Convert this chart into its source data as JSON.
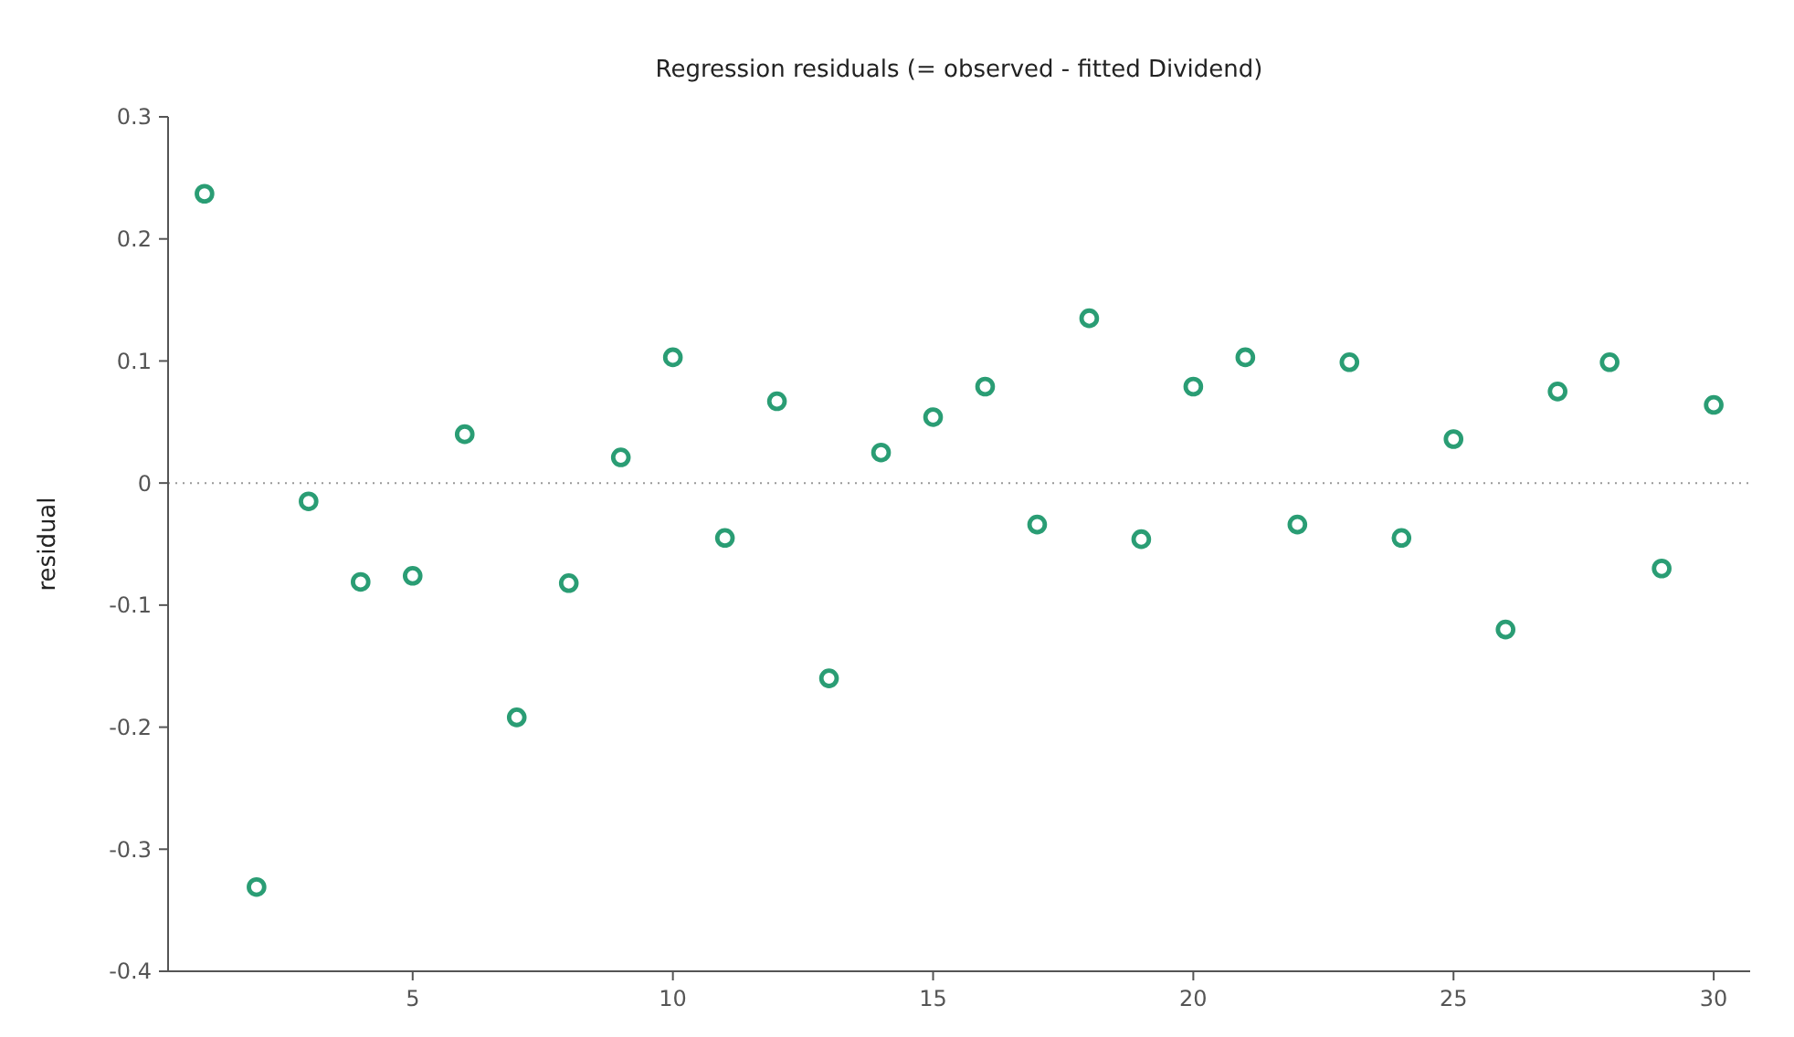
{
  "chart_data": {
    "type": "scatter",
    "title": "Regression residuals (= observed - fitted Dividend)",
    "ylabel": "residual",
    "x": [
      1,
      2,
      3,
      4,
      5,
      6,
      7,
      8,
      9,
      10,
      11,
      12,
      13,
      14,
      15,
      16,
      17,
      18,
      19,
      20,
      21,
      22,
      23,
      24,
      25,
      26,
      27,
      28,
      29,
      30
    ],
    "series": [
      {
        "color": "#2a9d74",
        "values": [
          0.237,
          -0.331,
          -0.015,
          -0.081,
          -0.076,
          0.04,
          -0.192,
          -0.082,
          0.021,
          0.103,
          -0.045,
          0.067,
          -0.16,
          0.025,
          0.054,
          0.079,
          -0.034,
          0.135,
          -0.046,
          0.079,
          0.103,
          -0.034,
          0.099,
          -0.045,
          0.036,
          -0.12,
          0.075,
          0.099,
          -0.07,
          0.064
        ]
      }
    ],
    "xlim": [
      0.3,
      30.7
    ],
    "xticks": [
      5,
      10,
      15,
      20,
      25,
      30
    ],
    "ylim": [
      -0.4,
      0.3
    ],
    "yticks": [
      -0.4,
      -0.3,
      -0.2,
      -0.1,
      0,
      0.1,
      0.2,
      0.3
    ],
    "ref_lines": [
      {
        "axis": "y",
        "value": 0,
        "color": "#999999",
        "line_style": "dotted"
      }
    ],
    "marker": "circle",
    "grid": false
  }
}
